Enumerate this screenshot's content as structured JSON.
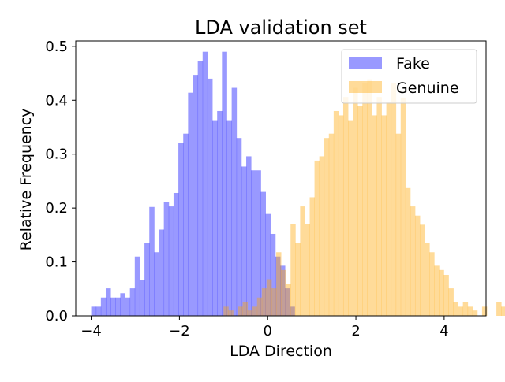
{
  "chart_data": {
    "type": "histogram",
    "title": "LDA validation set",
    "xlabel": "LDA Direction",
    "ylabel": "Relative Frequency",
    "xlim": [
      -4.35,
      4.95
    ],
    "ylim": [
      0,
      0.51
    ],
    "xticks": [
      -4,
      -2,
      0,
      2,
      4
    ],
    "xtick_labels": [
      "−4",
      "−2",
      "0",
      "2",
      "4"
    ],
    "yticks": [
      0.0,
      0.1,
      0.2,
      0.3,
      0.4,
      0.5
    ],
    "ytick_labels": [
      "0.0",
      "0.1",
      "0.2",
      "0.3",
      "0.4",
      "0.5"
    ],
    "legend_position": "upper right",
    "bar_alpha": 0.4,
    "series": [
      {
        "name": "Fake",
        "color": "#0000ff",
        "bins_start": -4.0,
        "bin_width": 0.1098,
        "values": [
          0.017,
          0.017,
          0.034,
          0.051,
          0.034,
          0.034,
          0.042,
          0.034,
          0.051,
          0.11,
          0.067,
          0.135,
          0.202,
          0.118,
          0.16,
          0.211,
          0.203,
          0.228,
          0.321,
          0.338,
          0.414,
          0.447,
          0.473,
          0.49,
          0.44,
          0.363,
          0.38,
          0.49,
          0.363,
          0.423,
          0.33,
          0.277,
          0.296,
          0.27,
          0.27,
          0.23,
          0.189,
          0.152,
          0.11,
          0.093,
          0.051,
          0.017
        ]
      },
      {
        "name": "Genuine",
        "color": "#ffa500",
        "bins_start": -1.0,
        "bin_width": 0.1085,
        "values": [
          0.017,
          0.01,
          0.0,
          0.017,
          0.025,
          0.01,
          0.017,
          0.034,
          0.051,
          0.068,
          0.051,
          0.118,
          0.085,
          0.059,
          0.17,
          0.135,
          0.203,
          0.17,
          0.22,
          0.288,
          0.296,
          0.33,
          0.338,
          0.38,
          0.372,
          0.406,
          0.363,
          0.423,
          0.389,
          0.431,
          0.439,
          0.372,
          0.406,
          0.372,
          0.397,
          0.431,
          0.338,
          0.405,
          0.237,
          0.203,
          0.186,
          0.169,
          0.135,
          0.118,
          0.093,
          0.085,
          0.076,
          0.051,
          0.025,
          0.017,
          0.025,
          0.017,
          0.01,
          0.0,
          0.017,
          0.0,
          0.0,
          0.025,
          0.017
        ]
      }
    ]
  }
}
